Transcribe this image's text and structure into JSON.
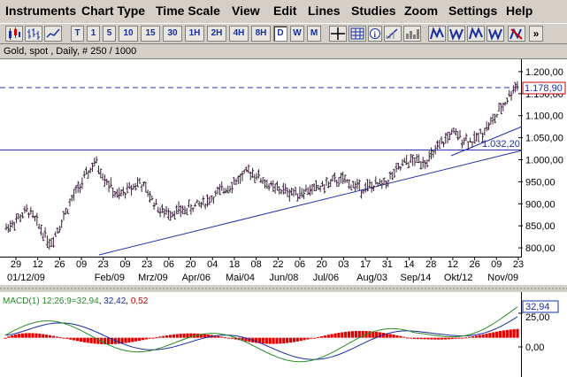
{
  "menu": [
    "Instruments",
    "Chart Type",
    "Time Scale",
    "View",
    "Edit",
    "Lines",
    "Studies",
    "Zoom",
    "Settings",
    "Help"
  ],
  "toolbar": {
    "timeframes": [
      "T",
      "1",
      "5",
      "10",
      "15",
      "30",
      "1H",
      "2H",
      "4H",
      "8H",
      "D",
      "W",
      "M"
    ],
    "selected_timeframe": "D",
    "more_glyph": "»"
  },
  "chart_title": "Gold, spot , Daily, # 250 / 1000",
  "price_axis": {
    "labels": [
      "1.200,00",
      "1.150,00",
      "1.100,00",
      "1.050,00",
      "1.000,00",
      "950,00",
      "900,00",
      "850,00",
      "800,00"
    ],
    "current_price": "1.178,90",
    "line_label": "1.032,20"
  },
  "date_axis": {
    "days": [
      "29",
      "12",
      "26",
      "09",
      "23",
      "09",
      "23",
      "06",
      "20",
      "04",
      "18",
      "08",
      "22",
      "06",
      "20",
      "03",
      "17",
      "31",
      "14",
      "28",
      "12",
      "26",
      "09",
      "23"
    ],
    "months": [
      "01/12/09",
      "Feb/09",
      "Mrz/09",
      "Apr/06",
      "Mai/04",
      "Jun/08",
      "Jul/06",
      "Aug/03",
      "Sep/14",
      "Okt/12",
      "Nov/09"
    ]
  },
  "macd": {
    "label": "MACD(1) 12;26;9",
    "macd_value": "=32,94",
    "signal_value": "32,42",
    "hist_value": "0,52",
    "axis_labels": [
      "25,00",
      "0,00"
    ],
    "current_value": "32,94"
  },
  "colors": {
    "price_bars": "#3a1f3a",
    "trendline": "#2233aa",
    "macd_line": "#2a8a2a",
    "signal_line": "#1a2ea0",
    "histogram": "#e00000",
    "current_price_box": "#c00000"
  },
  "chart_data": {
    "type": "line",
    "title": "Gold, spot , Daily, # 250 / 1000",
    "ylim": [
      780,
      1230
    ],
    "y_ticks": [
      800,
      850,
      900,
      950,
      1000,
      1050,
      1100,
      1150,
      1200
    ],
    "x_ticks": [
      "29",
      "12",
      "26",
      "09",
      "23",
      "09",
      "23",
      "06",
      "20",
      "04",
      "18",
      "08",
      "22",
      "06",
      "20",
      "03",
      "17",
      "31",
      "14",
      "28",
      "12",
      "26",
      "09",
      "23"
    ],
    "series": [
      {
        "name": "",
        "x": [
          "29",
          "12",
          "26",
          "09",
          "23",
          "09",
          "23",
          "06",
          "20",
          "04",
          "18",
          "08",
          "22",
          "06",
          "20",
          "03",
          "17",
          "31",
          "14",
          "28",
          "12",
          "26",
          "09",
          "23"
        ],
        "values": [
          845,
          885,
          810,
          915,
          995,
          915,
          950,
          880,
          885,
          905,
          940,
          975,
          935,
          925,
          935,
          955,
          935,
          945,
          995,
          1000,
          1060,
          1040,
          1095,
          1175
        ]
      }
    ],
    "horizontal_lines": [
      1178.9,
      1032.2
    ],
    "macd": {
      "ylim": [
        -40,
        45
      ],
      "y_ticks": [
        0,
        25
      ],
      "last_macd": 32.94,
      "last_signal": 32.42,
      "last_hist": 0.52
    }
  }
}
